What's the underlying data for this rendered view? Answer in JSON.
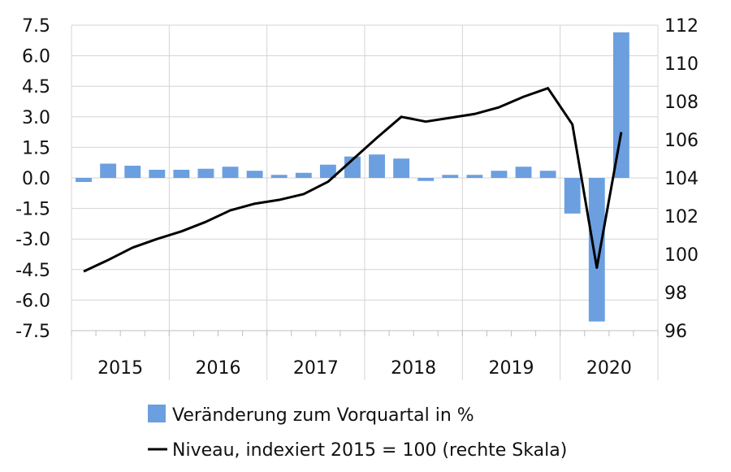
{
  "chart_data": {
    "type": "bar",
    "x_labels": [
      "2015",
      "2016",
      "2017",
      "2018",
      "2019",
      "2020"
    ],
    "quarters": [
      "2015Q1",
      "2015Q2",
      "2015Q3",
      "2015Q4",
      "2016Q1",
      "2016Q2",
      "2016Q3",
      "2016Q4",
      "2017Q1",
      "2017Q2",
      "2017Q3",
      "2017Q4",
      "2018Q1",
      "2018Q2",
      "2018Q3",
      "2018Q4",
      "2019Q1",
      "2019Q2",
      "2019Q3",
      "2019Q4",
      "2020Q1",
      "2020Q2",
      "2020Q3"
    ],
    "y_left": {
      "ticks": [
        "7.5",
        "6.0",
        "4.5",
        "3.0",
        "1.5",
        "0.0",
        "-1.5",
        "-3.0",
        "-4.5",
        "-6.0",
        "-7.5"
      ],
      "range": [
        -7.5,
        7.5
      ]
    },
    "y_right": {
      "ticks": [
        "112",
        "110",
        "108",
        "106",
        "104",
        "102",
        "100",
        "98",
        "96"
      ],
      "range": [
        96,
        112
      ]
    },
    "grid": true,
    "legend_position": "bottom",
    "series": [
      {
        "name": "Veränderung zum Vorquartal in %",
        "type": "bar",
        "axis": "left",
        "color": "#6b9fe0",
        "values": [
          -0.2,
          0.7,
          0.6,
          0.4,
          0.4,
          0.45,
          0.55,
          0.35,
          0.15,
          0.25,
          0.65,
          1.05,
          1.15,
          0.95,
          -0.15,
          0.15,
          0.15,
          0.35,
          0.55,
          0.35,
          -1.75,
          -7.05,
          7.15
        ]
      },
      {
        "name": "Niveau, indexiert 2015 = 100 (rechte Skala)",
        "type": "line",
        "axis": "right",
        "color": "#000000",
        "values": [
          99.1,
          99.7,
          100.35,
          100.8,
          101.2,
          101.7,
          102.3,
          102.65,
          102.85,
          103.15,
          103.8,
          104.95,
          106.1,
          107.2,
          106.95,
          107.15,
          107.35,
          107.7,
          108.25,
          108.7,
          106.8,
          99.3,
          106.4
        ]
      }
    ]
  }
}
